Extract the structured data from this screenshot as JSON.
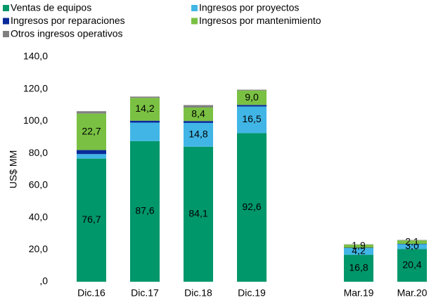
{
  "chart_data": {
    "type": "stacked_bar",
    "y_label": "US$ MM",
    "categories": [
      "Dic.16",
      "Dic.17",
      "Dic.18",
      "Dic.19",
      null,
      "Mar.19",
      "Mar.20"
    ],
    "series": [
      {
        "name": "Ventas de equipos",
        "color": "#00976b",
        "values": [
          76.7,
          87.6,
          84.1,
          92.6,
          null,
          16.8,
          20.4
        ],
        "value_labels": [
          "76,7",
          "87,6",
          "84,1",
          "92,6",
          null,
          "16,8",
          "20,4"
        ]
      },
      {
        "name": "Ingresos por proyectos",
        "color": "#41b6e6",
        "values": [
          2.8,
          11.5,
          14.8,
          16.5,
          null,
          4.2,
          3.0
        ],
        "value_labels": [
          null,
          null,
          "14,8",
          "16,5",
          null,
          "4,2",
          "3,0"
        ]
      },
      {
        "name": "Ingresos por reparaciones",
        "color": "#0a2a9a",
        "values": [
          2.5,
          1.2,
          1.2,
          1.0,
          null,
          0.2,
          0.2
        ],
        "value_labels": [
          null,
          null,
          null,
          null,
          null,
          null,
          null
        ]
      },
      {
        "name": "Ingresos por mantenimiento",
        "color": "#7ac143",
        "values": [
          22.7,
          14.2,
          8.4,
          9.0,
          null,
          1.9,
          2.1
        ],
        "value_labels": [
          "22,7",
          "14,2",
          "8,4",
          "9,0",
          null,
          "1,9",
          "2,1"
        ]
      },
      {
        "name": "Otros ingresos operativos",
        "color": "#808080",
        "values": [
          1.5,
          0.8,
          1.5,
          0.5,
          null,
          0.2,
          0.3
        ],
        "value_labels": [
          null,
          null,
          null,
          null,
          null,
          null,
          null
        ]
      }
    ],
    "ylim": [
      0,
      140
    ],
    "yticks": [
      {
        "value": 0,
        "label": ",0"
      },
      {
        "value": 20,
        "label": "20,0"
      },
      {
        "value": 40,
        "label": "40,0"
      },
      {
        "value": 60,
        "label": "60,0"
      },
      {
        "value": 80,
        "label": "80,0"
      },
      {
        "value": 100,
        "label": "100,0"
      },
      {
        "value": 120,
        "label": "120,0"
      },
      {
        "value": 140,
        "label": "140,0"
      }
    ],
    "grid": false
  }
}
